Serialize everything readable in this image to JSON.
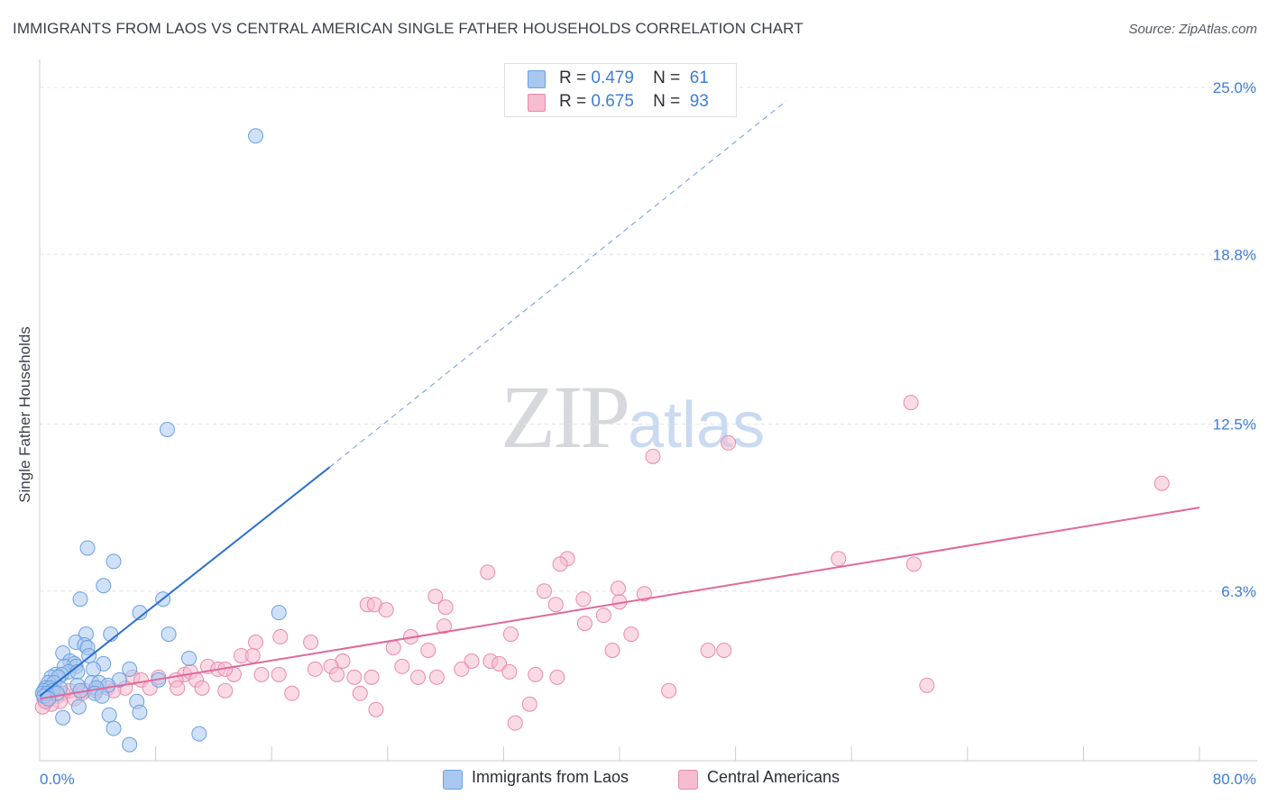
{
  "header": {
    "title": "IMMIGRANTS FROM LAOS VS CENTRAL AMERICAN SINGLE FATHER HOUSEHOLDS CORRELATION CHART",
    "source": "Source: ZipAtlas.com"
  },
  "watermark": {
    "zip": "ZIP",
    "atlas": "atlas"
  },
  "legend_stats": [
    {
      "r_label": "R =",
      "r_value": "0.479",
      "n_label": "N =",
      "n_value": "61",
      "color": "#a9c8f0"
    },
    {
      "r_label": "R =",
      "r_value": "0.675",
      "n_label": "N =",
      "n_value": "93",
      "color": "#f6bcd0"
    }
  ],
  "colors": {
    "blue_fill": "#a9c8f0",
    "blue_stroke": "#6b9fe0",
    "blue_line": "#2a6fd1",
    "pink_fill": "#f6bcd0",
    "pink_stroke": "#e88aab",
    "pink_line": "#e0699a",
    "tick_label": "#3d7dd6",
    "grid": "#e2e4e8"
  },
  "chart_data": {
    "type": "scatter",
    "title": "IMMIGRANTS FROM LAOS VS CENTRAL AMERICAN SINGLE FATHER HOUSEHOLDS CORRELATION CHART",
    "xlabel": "",
    "ylabel": "Single Father Households",
    "xlim": [
      0,
      80
    ],
    "ylim": [
      0,
      25.0
    ],
    "x_tick_labels": [
      "0.0%",
      "80.0%"
    ],
    "y_ticks": [
      6.3,
      12.5,
      18.8,
      25.0
    ],
    "y_tick_labels": [
      "6.3%",
      "12.5%",
      "18.8%",
      "25.0%"
    ],
    "grid": true,
    "legend_position": "top-center",
    "series": [
      {
        "name": "Immigrants from Laos",
        "r": 0.479,
        "n": 61,
        "trend": {
          "x": [
            0.0,
            20.0
          ],
          "y": [
            2.4,
            10.9
          ],
          "dashed_to": [
            51.5,
            24.5
          ]
        },
        "points": [
          [
            14.9,
            23.2
          ],
          [
            8.8,
            12.3
          ],
          [
            3.3,
            7.9
          ],
          [
            5.1,
            7.4
          ],
          [
            4.4,
            6.5
          ],
          [
            2.8,
            6.0
          ],
          [
            8.5,
            6.0
          ],
          [
            6.9,
            5.5
          ],
          [
            16.5,
            5.5
          ],
          [
            3.2,
            4.7
          ],
          [
            4.9,
            4.7
          ],
          [
            8.9,
            4.7
          ],
          [
            2.5,
            4.4
          ],
          [
            3.1,
            4.3
          ],
          [
            3.3,
            4.2
          ],
          [
            1.6,
            4.0
          ],
          [
            3.4,
            3.9
          ],
          [
            10.3,
            3.8
          ],
          [
            2.1,
            3.7
          ],
          [
            2.4,
            3.6
          ],
          [
            4.4,
            3.6
          ],
          [
            1.7,
            3.5
          ],
          [
            2.5,
            3.5
          ],
          [
            6.2,
            3.4
          ],
          [
            3.7,
            3.4
          ],
          [
            2.0,
            3.3
          ],
          [
            2.6,
            3.3
          ],
          [
            1.1,
            3.2
          ],
          [
            1.5,
            3.2
          ],
          [
            0.8,
            3.1
          ],
          [
            1.3,
            3.1
          ],
          [
            5.5,
            3.0
          ],
          [
            8.2,
            3.0
          ],
          [
            0.6,
            2.9
          ],
          [
            1.0,
            2.9
          ],
          [
            3.6,
            2.9
          ],
          [
            4.1,
            2.9
          ],
          [
            2.6,
            2.8
          ],
          [
            4.7,
            2.8
          ],
          [
            0.4,
            2.7
          ],
          [
            0.7,
            2.7
          ],
          [
            1.4,
            2.7
          ],
          [
            3.9,
            2.7
          ],
          [
            0.3,
            2.6
          ],
          [
            0.9,
            2.6
          ],
          [
            2.8,
            2.6
          ],
          [
            0.2,
            2.5
          ],
          [
            0.5,
            2.5
          ],
          [
            1.2,
            2.5
          ],
          [
            3.8,
            2.5
          ],
          [
            0.3,
            2.4
          ],
          [
            0.6,
            2.3
          ],
          [
            4.3,
            2.4
          ],
          [
            6.7,
            2.2
          ],
          [
            2.7,
            2.0
          ],
          [
            6.9,
            1.8
          ],
          [
            4.8,
            1.7
          ],
          [
            1.6,
            1.6
          ],
          [
            5.1,
            1.2
          ],
          [
            11.0,
            1.0
          ],
          [
            6.2,
            0.6
          ]
        ]
      },
      {
        "name": "Central Americans",
        "r": 0.675,
        "n": 93,
        "trend": {
          "x": [
            0.0,
            80.0
          ],
          "y": [
            2.3,
            9.4
          ]
        },
        "points": [
          [
            60.1,
            13.3
          ],
          [
            47.5,
            11.8
          ],
          [
            42.3,
            11.3
          ],
          [
            77.4,
            10.3
          ],
          [
            55.1,
            7.5
          ],
          [
            60.3,
            7.3
          ],
          [
            36.4,
            7.5
          ],
          [
            35.9,
            7.3
          ],
          [
            30.9,
            7.0
          ],
          [
            34.8,
            6.3
          ],
          [
            39.9,
            6.4
          ],
          [
            41.7,
            6.2
          ],
          [
            27.3,
            6.1
          ],
          [
            37.5,
            6.0
          ],
          [
            40.0,
            5.9
          ],
          [
            35.6,
            5.8
          ],
          [
            22.6,
            5.8
          ],
          [
            23.1,
            5.8
          ],
          [
            23.9,
            5.6
          ],
          [
            28.0,
            5.7
          ],
          [
            38.9,
            5.4
          ],
          [
            37.6,
            5.1
          ],
          [
            27.9,
            5.0
          ],
          [
            40.8,
            4.7
          ],
          [
            32.5,
            4.7
          ],
          [
            16.6,
            4.6
          ],
          [
            25.6,
            4.6
          ],
          [
            18.7,
            4.4
          ],
          [
            14.9,
            4.4
          ],
          [
            24.4,
            4.2
          ],
          [
            39.5,
            4.1
          ],
          [
            46.1,
            4.1
          ],
          [
            47.2,
            4.1
          ],
          [
            26.8,
            4.1
          ],
          [
            13.9,
            3.9
          ],
          [
            14.7,
            3.9
          ],
          [
            20.9,
            3.7
          ],
          [
            29.8,
            3.7
          ],
          [
            31.1,
            3.7
          ],
          [
            31.7,
            3.6
          ],
          [
            25.0,
            3.5
          ],
          [
            20.1,
            3.5
          ],
          [
            29.1,
            3.4
          ],
          [
            19.0,
            3.4
          ],
          [
            32.4,
            3.3
          ],
          [
            11.6,
            3.5
          ],
          [
            12.3,
            3.4
          ],
          [
            13.4,
            3.2
          ],
          [
            15.3,
            3.2
          ],
          [
            16.5,
            3.2
          ],
          [
            10.0,
            3.2
          ],
          [
            10.4,
            3.3
          ],
          [
            12.8,
            3.4
          ],
          [
            27.4,
            3.1
          ],
          [
            20.5,
            3.2
          ],
          [
            22.9,
            3.1
          ],
          [
            21.7,
            3.1
          ],
          [
            26.1,
            3.1
          ],
          [
            34.2,
            3.2
          ],
          [
            35.7,
            3.1
          ],
          [
            9.4,
            3.0
          ],
          [
            10.8,
            3.0
          ],
          [
            8.2,
            3.1
          ],
          [
            6.4,
            3.1
          ],
          [
            7.0,
            3.0
          ],
          [
            9.5,
            2.7
          ],
          [
            11.2,
            2.7
          ],
          [
            12.8,
            2.6
          ],
          [
            7.6,
            2.7
          ],
          [
            5.9,
            2.7
          ],
          [
            4.7,
            2.7
          ],
          [
            3.1,
            2.6
          ],
          [
            2.1,
            2.6
          ],
          [
            1.6,
            2.5
          ],
          [
            2.9,
            2.5
          ],
          [
            0.7,
            2.4
          ],
          [
            1.2,
            2.4
          ],
          [
            2.4,
            2.3
          ],
          [
            0.3,
            2.3
          ],
          [
            0.5,
            2.2
          ],
          [
            1.4,
            2.2
          ],
          [
            0.8,
            2.1
          ],
          [
            0.2,
            2.0
          ],
          [
            0.4,
            2.2
          ],
          [
            3.9,
            2.6
          ],
          [
            5.1,
            2.6
          ],
          [
            17.4,
            2.5
          ],
          [
            22.1,
            2.5
          ],
          [
            43.4,
            2.6
          ],
          [
            61.2,
            2.8
          ],
          [
            23.2,
            1.9
          ],
          [
            33.8,
            2.1
          ],
          [
            32.8,
            1.4
          ]
        ]
      }
    ]
  }
}
